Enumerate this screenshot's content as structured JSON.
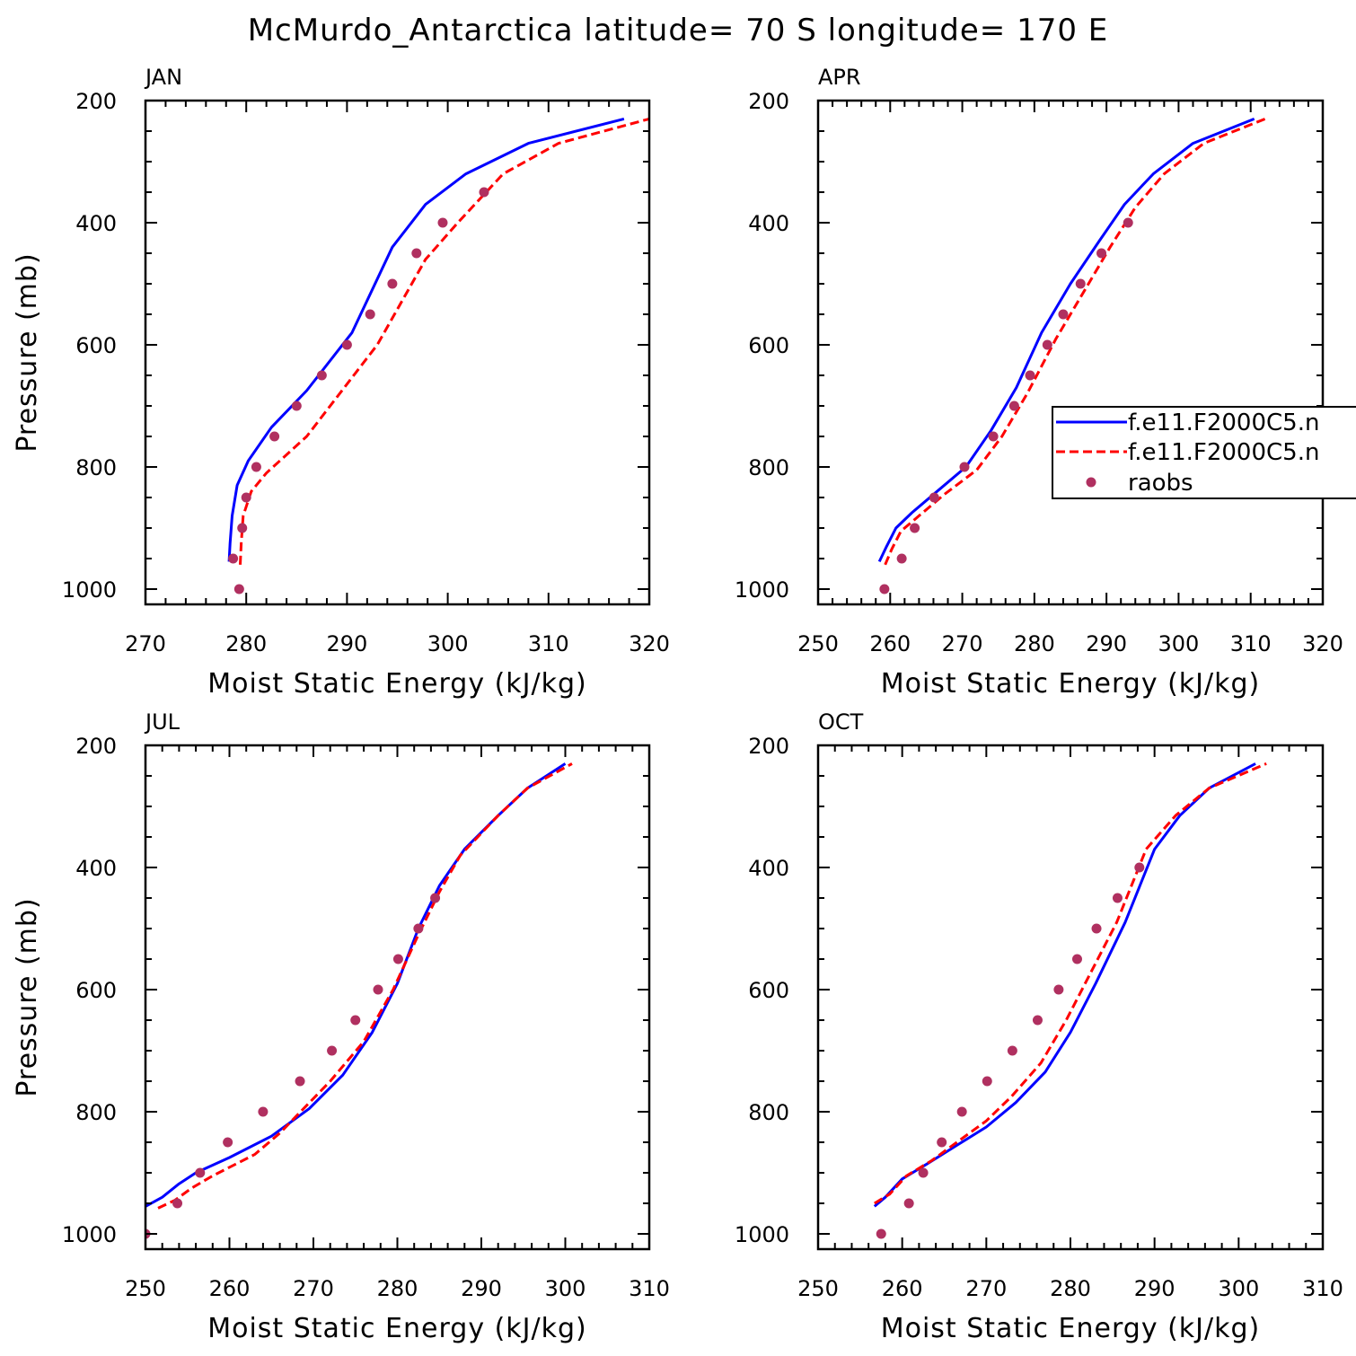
{
  "title": "McMurdo_Antarctica  latitude= 70 S longitude= 170 E",
  "colors": {
    "model1": "#0000ff",
    "model2": "#ff0000",
    "raobs": "#b03060"
  },
  "legend": {
    "items": [
      "f.e11.F2000C5.n",
      "f.e11.F2000C5.n",
      "raobs"
    ],
    "location": "right-middle of APR panel"
  },
  "chart_data": [
    {
      "type": "line",
      "panel": "JAN",
      "xlabel": "Moist Static Energy (kJ/kg)",
      "ylabel": "Pressure (mb)",
      "xlim": [
        270,
        320
      ],
      "ylim": [
        1025,
        200
      ],
      "xticks": [
        270,
        280,
        290,
        300,
        310,
        320
      ],
      "yticks": [
        200,
        400,
        600,
        800,
        1000
      ],
      "series": [
        {
          "name": "f.e11.F2000C5.n",
          "style": "solid",
          "points": [
            [
              278.3,
              955
            ],
            [
              278.4,
              925
            ],
            [
              278.6,
              880
            ],
            [
              279.1,
              830
            ],
            [
              280.2,
              790
            ],
            [
              282.5,
              735
            ],
            [
              286.0,
              675
            ],
            [
              290.5,
              580
            ],
            [
              294.5,
              440
            ],
            [
              297.8,
              370
            ],
            [
              301.8,
              320
            ],
            [
              308.0,
              270
            ],
            [
              317.5,
              230
            ]
          ]
        },
        {
          "name": "f.e11.F2000C5.n",
          "style": "dashed",
          "points": [
            [
              279.4,
              960
            ],
            [
              279.5,
              925
            ],
            [
              279.7,
              880
            ],
            [
              280.5,
              840
            ],
            [
              282.0,
              810
            ],
            [
              286.0,
              750
            ],
            [
              293.0,
              600
            ],
            [
              297.8,
              460
            ],
            [
              301.0,
              400
            ],
            [
              305.5,
              320
            ],
            [
              311.0,
              270
            ],
            [
              320.0,
              230
            ]
          ]
        },
        {
          "name": "raobs",
          "style": "dots",
          "points": [
            [
              279.3,
              1000
            ],
            [
              278.7,
              950
            ],
            [
              279.6,
              900
            ],
            [
              280.0,
              850
            ],
            [
              281.0,
              800
            ],
            [
              282.8,
              750
            ],
            [
              285.0,
              700
            ],
            [
              287.5,
              650
            ],
            [
              290.0,
              600
            ],
            [
              292.3,
              550
            ],
            [
              294.5,
              500
            ],
            [
              296.9,
              450
            ],
            [
              299.5,
              400
            ],
            [
              303.6,
              350
            ]
          ]
        }
      ]
    },
    {
      "type": "line",
      "panel": "APR",
      "xlabel": "Moist Static Energy (kJ/kg)",
      "ylabel": "",
      "xlim": [
        250,
        320
      ],
      "ylim": [
        1025,
        200
      ],
      "xticks": [
        250,
        260,
        270,
        280,
        290,
        300,
        310,
        320
      ],
      "yticks": [
        200,
        400,
        600,
        800,
        1000
      ],
      "series": [
        {
          "name": "f.e11.F2000C5.n",
          "style": "solid",
          "points": [
            [
              258.5,
              955
            ],
            [
              259.5,
              930
            ],
            [
              260.8,
              900
            ],
            [
              263.0,
              875
            ],
            [
              266.5,
              840
            ],
            [
              270.5,
              800
            ],
            [
              274.0,
              740
            ],
            [
              277.5,
              670
            ],
            [
              281.0,
              580
            ],
            [
              285.0,
              500
            ],
            [
              289.0,
              430
            ],
            [
              292.5,
              370
            ],
            [
              296.5,
              320
            ],
            [
              302.0,
              270
            ],
            [
              310.5,
              230
            ]
          ]
        },
        {
          "name": "f.e11.F2000C5.n",
          "style": "dashed",
          "points": [
            [
              259.3,
              960
            ],
            [
              260.2,
              935
            ],
            [
              261.5,
              905
            ],
            [
              264.0,
              880
            ],
            [
              267.5,
              845
            ],
            [
              272.0,
              805
            ],
            [
              275.5,
              750
            ],
            [
              279.0,
              680
            ],
            [
              283.0,
              590
            ],
            [
              287.0,
              510
            ],
            [
              290.5,
              440
            ],
            [
              294.0,
              375
            ],
            [
              298.0,
              320
            ],
            [
              303.5,
              270
            ],
            [
              312.0,
              230
            ]
          ]
        },
        {
          "name": "raobs",
          "style": "dots",
          "points": [
            [
              259.2,
              1000
            ],
            [
              261.6,
              950
            ],
            [
              263.4,
              900
            ],
            [
              266.1,
              850
            ],
            [
              270.3,
              800
            ],
            [
              274.3,
              750
            ],
            [
              277.2,
              700
            ],
            [
              279.4,
              650
            ],
            [
              281.8,
              600
            ],
            [
              284.0,
              550
            ],
            [
              286.4,
              500
            ],
            [
              289.3,
              450
            ],
            [
              293.0,
              400
            ]
          ]
        }
      ]
    },
    {
      "type": "line",
      "panel": "JUL",
      "xlabel": "Moist Static Energy (kJ/kg)",
      "ylabel": "Pressure (mb)",
      "xlim": [
        250,
        310
      ],
      "ylim": [
        1025,
        200
      ],
      "xticks": [
        250,
        260,
        270,
        280,
        290,
        300,
        310
      ],
      "yticks": [
        200,
        400,
        600,
        800,
        1000
      ],
      "series": [
        {
          "name": "f.e11.F2000C5.n",
          "style": "solid",
          "points": [
            [
              250.0,
              955
            ],
            [
              252.0,
              940
            ],
            [
              254.0,
              918
            ],
            [
              256.0,
              900
            ],
            [
              260.0,
              875
            ],
            [
              265.0,
              840
            ],
            [
              269.5,
              795
            ],
            [
              273.5,
              740
            ],
            [
              277.0,
              670
            ],
            [
              280.0,
              590
            ],
            [
              282.5,
              500
            ],
            [
              285.0,
              430
            ],
            [
              288.0,
              370
            ],
            [
              292.0,
              315
            ],
            [
              295.5,
              270
            ],
            [
              300.0,
              230
            ]
          ]
        },
        {
          "name": "f.e11.F2000C5.n",
          "style": "dashed",
          "points": [
            [
              251.5,
              958
            ],
            [
              253.5,
              945
            ],
            [
              255.5,
              925
            ],
            [
              258.0,
              905
            ],
            [
              263.0,
              870
            ],
            [
              266.0,
              835
            ],
            [
              272.0,
              750
            ],
            [
              276.0,
              685
            ],
            [
              279.5,
              600
            ],
            [
              282.5,
              510
            ],
            [
              285.0,
              440
            ],
            [
              287.5,
              380
            ],
            [
              292.0,
              315
            ],
            [
              295.5,
              270
            ],
            [
              300.8,
              230
            ]
          ]
        },
        {
          "name": "raobs",
          "style": "dots",
          "points": [
            [
              250.0,
              1000
            ],
            [
              253.8,
              950
            ],
            [
              256.5,
              900
            ],
            [
              259.8,
              850
            ],
            [
              264.0,
              800
            ],
            [
              268.4,
              750
            ],
            [
              272.2,
              700
            ],
            [
              275.0,
              650
            ],
            [
              277.7,
              600
            ],
            [
              280.1,
              550
            ],
            [
              282.5,
              500
            ],
            [
              284.5,
              450
            ]
          ]
        }
      ]
    },
    {
      "type": "line",
      "panel": "OCT",
      "xlabel": "Moist Static Energy (kJ/kg)",
      "ylabel": "",
      "xlim": [
        250,
        310
      ],
      "ylim": [
        1025,
        200
      ],
      "xticks": [
        250,
        260,
        270,
        280,
        290,
        300,
        310
      ],
      "yticks": [
        200,
        400,
        600,
        800,
        1000
      ],
      "series": [
        {
          "name": "f.e11.F2000C5.n",
          "style": "solid",
          "points": [
            [
              256.7,
              955
            ],
            [
              258.0,
              940
            ],
            [
              260.0,
              910
            ],
            [
              263.0,
              885
            ],
            [
              266.5,
              855
            ],
            [
              270.0,
              825
            ],
            [
              273.5,
              785
            ],
            [
              277.0,
              735
            ],
            [
              280.0,
              670
            ],
            [
              283.0,
              590
            ],
            [
              286.5,
              490
            ],
            [
              290.0,
              370
            ],
            [
              293.0,
              315
            ],
            [
              296.5,
              270
            ],
            [
              302.0,
              230
            ]
          ]
        },
        {
          "name": "f.e11.F2000C5.n",
          "style": "dashed",
          "points": [
            [
              256.7,
              950
            ],
            [
              258.5,
              935
            ],
            [
              260.5,
              905
            ],
            [
              263.5,
              880
            ],
            [
              267.0,
              845
            ],
            [
              270.0,
              815
            ],
            [
              273.0,
              775
            ],
            [
              276.5,
              720
            ],
            [
              279.5,
              650
            ],
            [
              282.5,
              570
            ],
            [
              285.5,
              490
            ],
            [
              289.0,
              370
            ],
            [
              292.5,
              315
            ],
            [
              296.5,
              270
            ],
            [
              303.3,
              230
            ]
          ]
        },
        {
          "name": "raobs",
          "style": "dots",
          "points": [
            [
              257.5,
              1000
            ],
            [
              260.8,
              950
            ],
            [
              262.5,
              900
            ],
            [
              264.7,
              850
            ],
            [
              267.1,
              800
            ],
            [
              270.1,
              750
            ],
            [
              273.1,
              700
            ],
            [
              276.1,
              650
            ],
            [
              278.6,
              600
            ],
            [
              280.8,
              550
            ],
            [
              283.1,
              500
            ],
            [
              285.6,
              450
            ],
            [
              288.2,
              400
            ]
          ]
        }
      ]
    }
  ]
}
